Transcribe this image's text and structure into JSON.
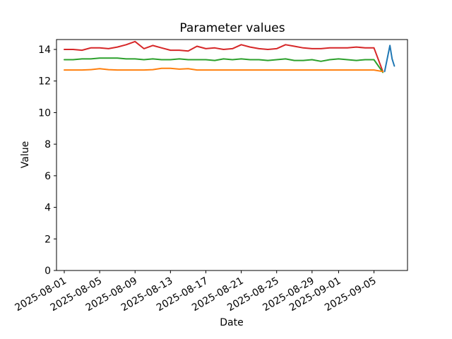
{
  "chart_data": {
    "type": "line",
    "title": "Parameter values",
    "xlabel": "Date",
    "ylabel": "Value",
    "grid": false,
    "legend": "none",
    "background_color": "#ffffff",
    "spine_color": "#000000",
    "x_axis_type": "date",
    "x_start_date": "2025-08-01",
    "x_unit": "days",
    "x_tick_labels": [
      "2025-08-01",
      "2025-08-05",
      "2025-08-09",
      "2025-08-13",
      "2025-08-17",
      "2025-08-21",
      "2025-08-25",
      "2025-08-29",
      "2025-09-01",
      "2025-09-05"
    ],
    "x_tick_day_offsets": [
      0,
      4,
      8,
      12,
      16,
      20,
      24,
      28,
      31,
      35
    ],
    "x_tick_rotation_deg": 30,
    "y_ticks": [
      0,
      2,
      4,
      6,
      8,
      10,
      12,
      14
    ],
    "xlim_day_offsets": [
      -0.9,
      38.9
    ],
    "ylim": [
      0,
      14.67
    ],
    "line_width": 2,
    "series": [
      {
        "name": "series-1-red",
        "color": "#d62728",
        "x_mode": "daily_index",
        "values": [
          14.0,
          14.0,
          13.95,
          14.1,
          14.1,
          14.05,
          14.15,
          14.3,
          14.5,
          14.05,
          14.25,
          14.1,
          13.95,
          13.95,
          13.9,
          14.2,
          14.05,
          14.1,
          14.0,
          14.05,
          14.3,
          14.15,
          14.05,
          14.0,
          14.05,
          14.3,
          14.2,
          14.1,
          14.05,
          14.05,
          14.1,
          14.1,
          14.1,
          14.15,
          14.1,
          14.1,
          12.6
        ]
      },
      {
        "name": "series-2-green",
        "color": "#2ca02c",
        "x_mode": "daily_index",
        "values": [
          13.35,
          13.35,
          13.4,
          13.4,
          13.45,
          13.45,
          13.45,
          13.4,
          13.4,
          13.35,
          13.4,
          13.35,
          13.35,
          13.4,
          13.35,
          13.35,
          13.35,
          13.3,
          13.4,
          13.35,
          13.4,
          13.35,
          13.35,
          13.3,
          13.35,
          13.4,
          13.3,
          13.3,
          13.35,
          13.25,
          13.35,
          13.4,
          13.35,
          13.3,
          13.35,
          13.35,
          12.55
        ]
      },
      {
        "name": "series-3-orange",
        "color": "#ff7f0e",
        "x_mode": "daily_index",
        "values": [
          12.7,
          12.7,
          12.7,
          12.72,
          12.78,
          12.72,
          12.7,
          12.7,
          12.7,
          12.7,
          12.72,
          12.8,
          12.8,
          12.75,
          12.78,
          12.7,
          12.7,
          12.7,
          12.7,
          12.7,
          12.7,
          12.7,
          12.7,
          12.7,
          12.7,
          12.7,
          12.7,
          12.7,
          12.7,
          12.7,
          12.7,
          12.7,
          12.7,
          12.7,
          12.7,
          12.7,
          12.6
        ]
      },
      {
        "name": "series-4-blue",
        "color": "#1f77b4",
        "x_mode": "day_offsets",
        "x_day_offsets": [
          36.2,
          36.8,
          37.05,
          37.3
        ],
        "values": [
          12.6,
          14.25,
          13.4,
          12.95
        ]
      }
    ]
  }
}
